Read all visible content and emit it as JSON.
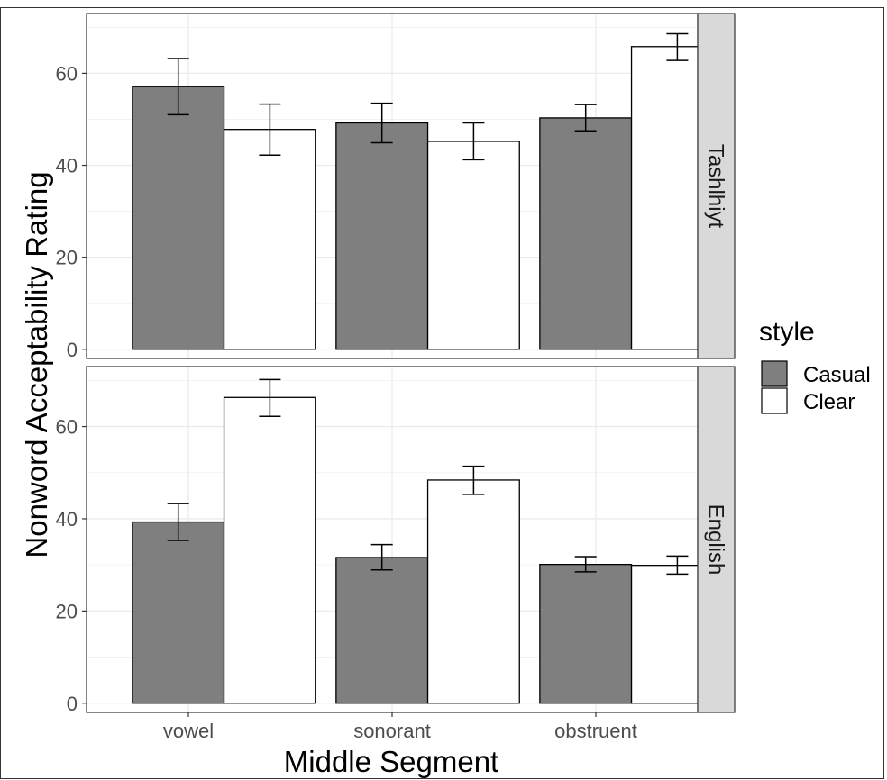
{
  "chart_data": {
    "type": "bar",
    "xlabel": "Middle Segment",
    "ylabel": "Nonword Acceptability Rating",
    "categories": [
      "vowel",
      "sonorant",
      "obstruent"
    ],
    "ylim": [
      -2,
      73
    ],
    "yticks": [
      0,
      20,
      40,
      60
    ],
    "grid": true,
    "legend": {
      "title": "style",
      "position": "right",
      "entries": [
        "Casual",
        "Clear"
      ]
    },
    "series_colors": {
      "Casual": "#7f7f7f",
      "Clear": "#ffffff"
    },
    "panels": [
      {
        "label": "Tashlhiyt",
        "series": [
          {
            "name": "Casual",
            "values": [
              57.1,
              49.2,
              50.3
            ],
            "err_low": [
              51.0,
              44.9,
              47.5
            ],
            "err_high": [
              63.2,
              53.5,
              53.2
            ]
          },
          {
            "name": "Clear",
            "values": [
              47.8,
              45.2,
              65.8
            ],
            "err_low": [
              42.2,
              41.2,
              62.8
            ],
            "err_high": [
              53.3,
              49.2,
              68.6
            ]
          }
        ]
      },
      {
        "label": "English",
        "series": [
          {
            "name": "Casual",
            "values": [
              39.3,
              31.6,
              30.1
            ],
            "err_low": [
              35.3,
              28.9,
              28.5
            ],
            "err_high": [
              43.3,
              34.4,
              31.8
            ]
          },
          {
            "name": "Clear",
            "values": [
              66.3,
              48.4,
              29.9
            ],
            "err_low": [
              62.2,
              45.3,
              28.0
            ],
            "err_high": [
              70.2,
              51.4,
              31.9
            ]
          }
        ]
      }
    ]
  }
}
